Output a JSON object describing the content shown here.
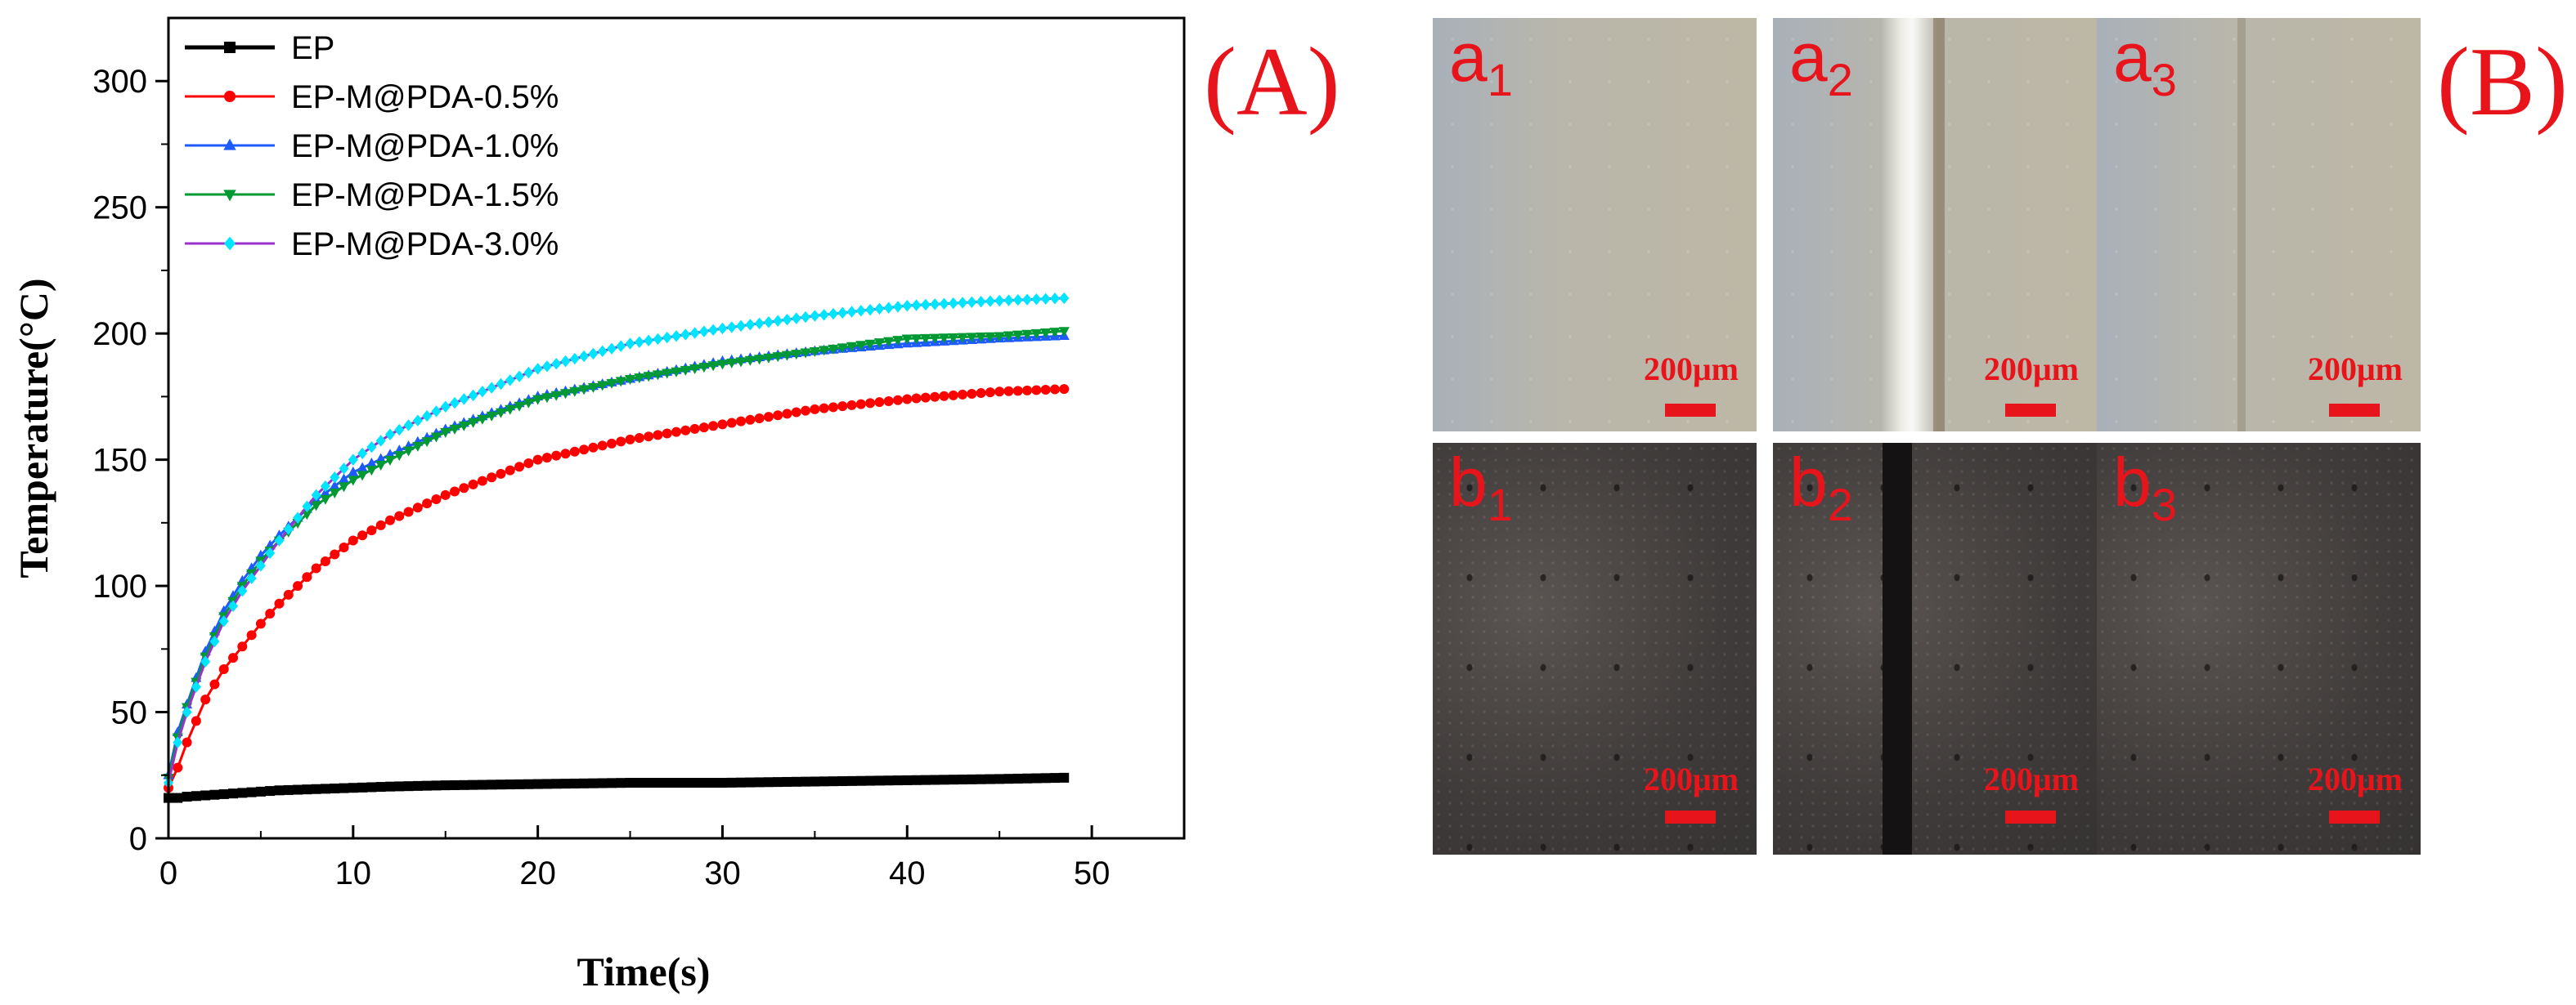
{
  "panel_A_label": "(A)",
  "panel_B_label": "(B)",
  "chart_data": {
    "type": "line",
    "xlabel": "Time(s)",
    "ylabel": "Temperature(°C)",
    "xlim": [
      0,
      55
    ],
    "ylim": [
      0,
      325
    ],
    "xticks": [
      0,
      10,
      20,
      30,
      40,
      50
    ],
    "yticks": [
      0,
      50,
      100,
      150,
      200,
      250,
      300
    ],
    "legend_position": "top-left",
    "x": [
      0,
      0.5,
      1,
      2,
      3,
      4,
      5,
      6,
      8,
      10,
      12,
      15,
      20,
      25,
      30,
      35,
      40,
      45,
      48.5
    ],
    "series": [
      {
        "name": "EP",
        "color": "#000000",
        "marker": "square",
        "values": [
          16,
          16,
          16.5,
          17,
          17.5,
          18,
          18.5,
          19,
          19.5,
          20,
          20.5,
          21,
          21.5,
          22,
          22,
          22.5,
          23,
          23.5,
          24
        ]
      },
      {
        "name": "EP-M@PDA-0.5%",
        "color": "#ff0000",
        "marker": "circle",
        "values": [
          20,
          28,
          38,
          55,
          67,
          76,
          85,
          93,
          107,
          118,
          126,
          136,
          150,
          158,
          164,
          170,
          174,
          177,
          178
        ]
      },
      {
        "name": "EP-M@PDA-1.0%",
        "color": "#1e5bff",
        "marker": "triangle",
        "values": [
          25,
          42,
          53,
          74,
          90,
          102,
          112,
          120,
          134,
          145,
          152,
          162,
          175,
          182,
          189,
          193,
          196,
          198,
          199
        ]
      },
      {
        "name": "EP-M@PDA-1.5%",
        "color": "#009933",
        "marker": "down-triangle",
        "values": [
          24,
          40,
          52,
          72,
          88,
          100,
          110,
          118,
          132,
          142,
          150,
          161,
          174,
          182,
          188,
          193,
          198,
          199,
          201
        ]
      },
      {
        "name": "EP-M@PDA-3.0%",
        "color": "#9933cc",
        "marker": "diamond",
        "marker_color": "#00e5ff",
        "values": [
          22,
          38,
          50,
          70,
          86,
          98,
          108,
          118,
          136,
          150,
          160,
          171,
          186,
          196,
          202,
          207,
          211,
          213,
          214
        ]
      }
    ]
  },
  "micrographs": {
    "top_row": [
      {
        "label": "a",
        "sub": "1",
        "scale": "200μm"
      },
      {
        "label": "a",
        "sub": "2",
        "scale": "200μm"
      },
      {
        "label": "a",
        "sub": "3",
        "scale": "200μm"
      }
    ],
    "bottom_row": [
      {
        "label": "b",
        "sub": "1",
        "scale": "200μm"
      },
      {
        "label": "b",
        "sub": "2",
        "scale": "200μm"
      },
      {
        "label": "b",
        "sub": "3",
        "scale": "200μm"
      }
    ]
  }
}
